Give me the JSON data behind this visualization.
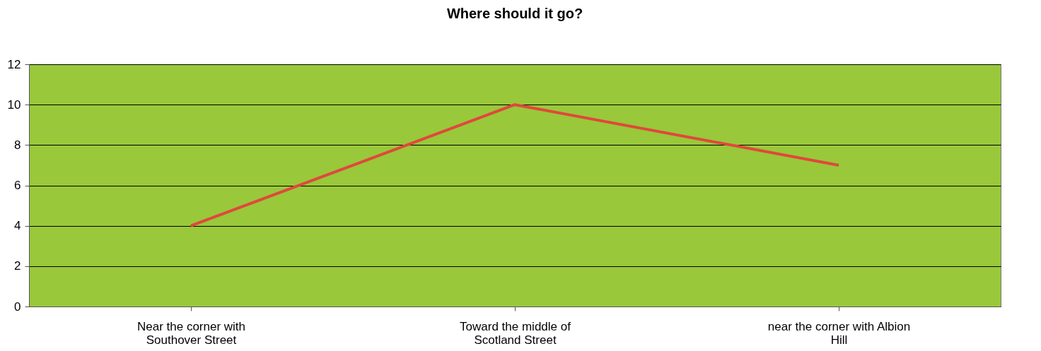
{
  "chart_data": {
    "type": "line",
    "title": "Where should it go?",
    "categories": [
      "Near the corner with Southover Street",
      "Toward the middle of Scotland Street",
      "near the corner with Albion Hill"
    ],
    "series": [
      {
        "color": "#e0483c",
        "values": [
          4,
          10,
          7
        ]
      }
    ],
    "ylim": [
      0,
      12
    ],
    "yticks": [
      0,
      2,
      4,
      6,
      8,
      10,
      12
    ],
    "grid": "y"
  }
}
